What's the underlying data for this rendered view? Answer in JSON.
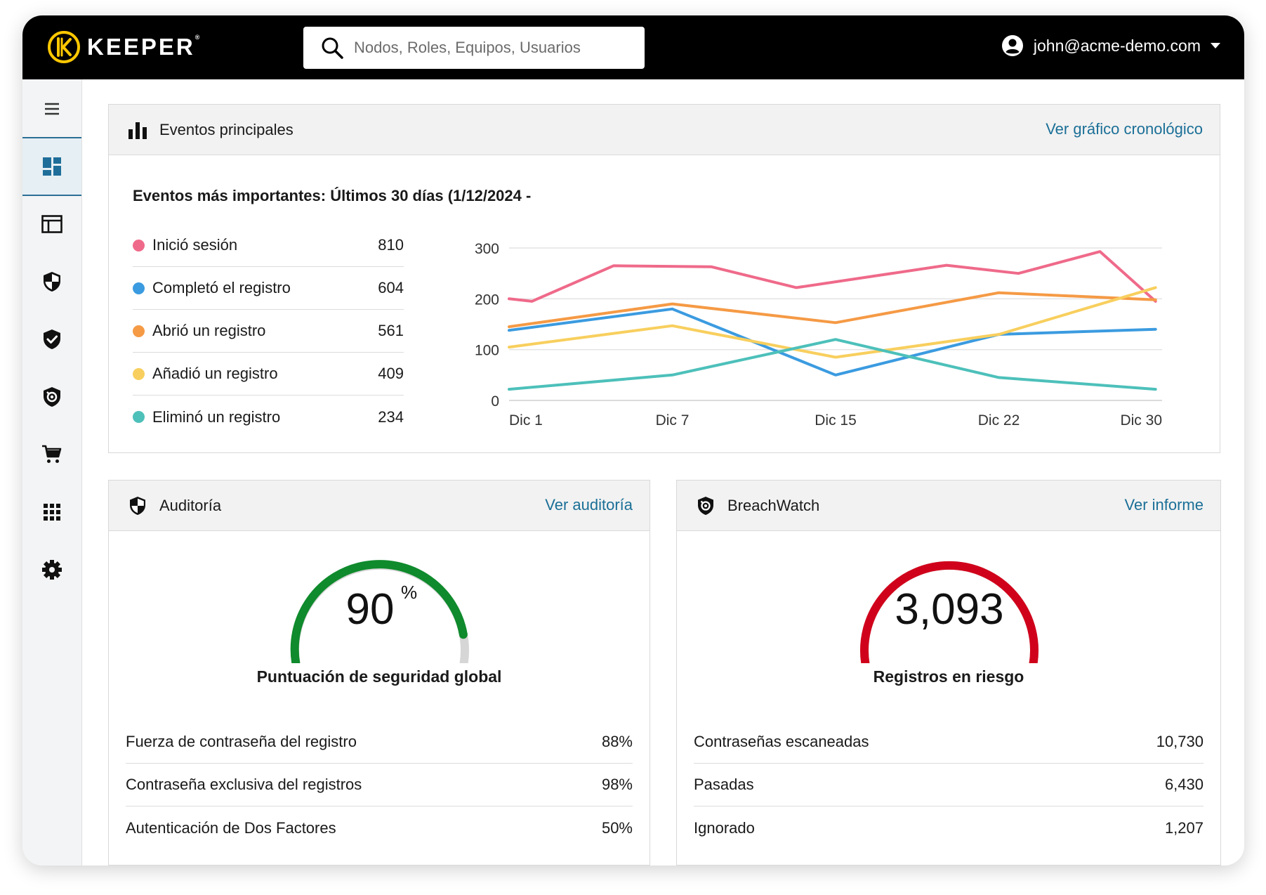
{
  "brand": {
    "name": "KEEPER",
    "trademark": "®",
    "accent": "#FFC800"
  },
  "search": {
    "placeholder": "Nodos, Roles, Equipos, Usuarios"
  },
  "user": {
    "email": "john@acme-demo.com"
  },
  "sidebar": {
    "items": [
      {
        "icon": "menu-icon",
        "active": false
      },
      {
        "icon": "dashboard-icon",
        "active": true
      },
      {
        "icon": "admin-console-icon",
        "active": false
      },
      {
        "icon": "security-audit-shield-icon",
        "active": false
      },
      {
        "icon": "compliance-check-shield-icon",
        "active": false
      },
      {
        "icon": "breachwatch-shield-icon",
        "active": false
      },
      {
        "icon": "cart-icon",
        "active": false
      },
      {
        "icon": "apps-grid-icon",
        "active": false
      },
      {
        "icon": "gear-icon",
        "active": false
      }
    ]
  },
  "events": {
    "title": "Eventos principales",
    "link": "Ver gráfico cronológico",
    "subtitle": "Eventos más importantes: Últimos 30 días (1/12/2024 -",
    "legend": [
      {
        "label": "Inició sesión",
        "value": "810",
        "color": "#EF6A8A"
      },
      {
        "label": "Completó el registro",
        "value": "604",
        "color": "#3B9BE0"
      },
      {
        "label": "Abrió un registro",
        "value": "561",
        "color": "#F59A45"
      },
      {
        "label": "Añadió un registro",
        "value": "409",
        "color": "#F8CF5E"
      },
      {
        "label": "Eliminó un registro",
        "value": "234",
        "color": "#4DC0BA"
      }
    ]
  },
  "chart_data": {
    "type": "line",
    "x": [
      "Dic 1",
      "Dic 3",
      "Dic 7",
      "Dic 11",
      "Dic 15",
      "Dic 18",
      "Dic 22",
      "Dic 26",
      "Dic 30"
    ],
    "xticks": [
      "Dic 1",
      "Dic 7",
      "Dic 15",
      "Dic 22",
      "Dic 30"
    ],
    "ylim": [
      0,
      300
    ],
    "yticks": [
      0,
      100,
      200,
      300
    ],
    "grid": true,
    "series": [
      {
        "name": "Inició sesión",
        "color": "#EF6A8A",
        "points": [
          [
            0,
            200
          ],
          [
            0.035,
            195
          ],
          [
            0.16,
            265
          ],
          [
            0.31,
            263
          ],
          [
            0.44,
            222
          ],
          [
            0.67,
            266
          ],
          [
            0.78,
            250
          ],
          [
            0.905,
            293
          ],
          [
            0.99,
            195
          ]
        ]
      },
      {
        "name": "Completó el registro",
        "color": "#3B9BE0",
        "points": [
          [
            0,
            138
          ],
          [
            0.25,
            180
          ],
          [
            0.5,
            50
          ],
          [
            0.75,
            130
          ],
          [
            0.99,
            140
          ]
        ]
      },
      {
        "name": "Abrió un registro",
        "color": "#F59A45",
        "points": [
          [
            0,
            145
          ],
          [
            0.25,
            190
          ],
          [
            0.5,
            153
          ],
          [
            0.75,
            212
          ],
          [
            0.99,
            198
          ]
        ]
      },
      {
        "name": "Añadió un registro",
        "color": "#F8CF5E",
        "points": [
          [
            0,
            105
          ],
          [
            0.25,
            147
          ],
          [
            0.5,
            85
          ],
          [
            0.75,
            130
          ],
          [
            0.99,
            222
          ]
        ]
      },
      {
        "name": "Eliminó un registro",
        "color": "#4DC0BA",
        "points": [
          [
            0,
            22
          ],
          [
            0.25,
            50
          ],
          [
            0.5,
            120
          ],
          [
            0.75,
            45
          ],
          [
            0.99,
            22
          ]
        ]
      }
    ]
  },
  "audit": {
    "title": "Auditoría",
    "link": "Ver auditoría",
    "gauge_value": "90",
    "gauge_unit": "%",
    "gauge_fraction": 0.9,
    "gauge_color": "#0F8A2C",
    "caption": "Puntuación de seguridad global",
    "stats": [
      {
        "label": "Fuerza de contraseña del registro",
        "value": "88%"
      },
      {
        "label": "Contraseña exclusiva del registros",
        "value": "98%"
      },
      {
        "label": "Autenticación de Dos Factores",
        "value": "50%"
      }
    ]
  },
  "breachwatch": {
    "title": "BreachWatch",
    "link": "Ver informe",
    "gauge_value": "3,093",
    "gauge_fraction": 1.0,
    "gauge_color": "#D0021B",
    "caption": "Registros en riesgo",
    "stats": [
      {
        "label": "Contraseñas escaneadas",
        "value": "10,730"
      },
      {
        "label": "Pasadas",
        "value": "6,430"
      },
      {
        "label": "Ignorado",
        "value": "1,207"
      }
    ]
  }
}
